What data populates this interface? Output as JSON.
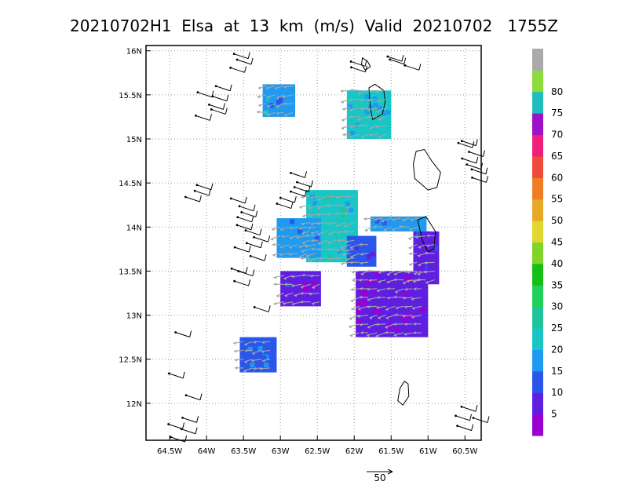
{
  "chart_data": {
    "type": "heatmap",
    "title": "20210702H1  Elsa  at  13  km  (m/s)  Valid  20210702   1755Z",
    "xlabel": "",
    "ylabel": "",
    "xlim": [
      -64.82,
      -60.28
    ],
    "ylim": [
      11.58,
      16.06
    ],
    "grid": true,
    "x_ticks": [
      {
        "value": -64.5,
        "label": "64.5W"
      },
      {
        "value": -64.0,
        "label": "64W"
      },
      {
        "value": -63.5,
        "label": "63.5W"
      },
      {
        "value": -63.0,
        "label": "63W"
      },
      {
        "value": -62.5,
        "label": "62.5W"
      },
      {
        "value": -62.0,
        "label": "62W"
      },
      {
        "value": -61.5,
        "label": "61.5W"
      },
      {
        "value": -61.0,
        "label": "61W"
      },
      {
        "value": -60.5,
        "label": "60.5W"
      }
    ],
    "y_ticks": [
      {
        "value": 16.0,
        "label": "16N"
      },
      {
        "value": 15.5,
        "label": "15.5N"
      },
      {
        "value": 15.0,
        "label": "15N"
      },
      {
        "value": 14.5,
        "label": "14.5N"
      },
      {
        "value": 14.0,
        "label": "14N"
      },
      {
        "value": 13.5,
        "label": "13.5N"
      },
      {
        "value": 13.0,
        "label": "13N"
      },
      {
        "value": 12.5,
        "label": "12.5N"
      },
      {
        "value": 12.0,
        "label": "12N"
      }
    ],
    "colorbar": {
      "labels": [
        "5",
        "10",
        "15",
        "20",
        "25",
        "30",
        "35",
        "40",
        "45",
        "50",
        "55",
        "60",
        "65",
        "70",
        "75",
        "80"
      ],
      "colors": [
        "#9a00d4",
        "#5f1ee0",
        "#2a56ea",
        "#1e9af0",
        "#18c6c6",
        "#20c49a",
        "#1fd05a",
        "#13c013",
        "#82d428",
        "#e0d830",
        "#e8a82a",
        "#f07c24",
        "#f04a3c",
        "#f0207a",
        "#9b12c8",
        "#1ebebe",
        "#8cdc3c",
        "#aaaaaa"
      ]
    },
    "regions": [
      {
        "lon": [
          -63.24,
          -62.8
        ],
        "lat": [
          15.25,
          15.62
        ],
        "speed": 17
      },
      {
        "lon": [
          -62.1,
          -61.5
        ],
        "lat": [
          15.0,
          15.55
        ],
        "speed": 21
      },
      {
        "lon": [
          -62.65,
          -61.95
        ],
        "lat": [
          13.6,
          14.42
        ],
        "speed": 22
      },
      {
        "lon": [
          -63.05,
          -62.45
        ],
        "lat": [
          13.65,
          14.1
        ],
        "speed": 18
      },
      {
        "lon": [
          -61.78,
          -61.02
        ],
        "lat": [
          13.95,
          14.12
        ],
        "speed": 17
      },
      {
        "lon": [
          -62.1,
          -61.7
        ],
        "lat": [
          13.55,
          13.9
        ],
        "speed": 10
      },
      {
        "lon": [
          -63.0,
          -62.45
        ],
        "lat": [
          13.1,
          13.5
        ],
        "speed": 7
      },
      {
        "lon": [
          -61.98,
          -61.0
        ],
        "lat": [
          12.75,
          13.5
        ],
        "speed": 5
      },
      {
        "lon": [
          -61.2,
          -60.85
        ],
        "lat": [
          13.35,
          13.95
        ],
        "speed": 9
      },
      {
        "lon": [
          -63.55,
          -63.05
        ],
        "lat": [
          12.35,
          12.75
        ],
        "speed": 14
      }
    ],
    "vector_scale_label": "50",
    "vector_scale_value": 50
  }
}
